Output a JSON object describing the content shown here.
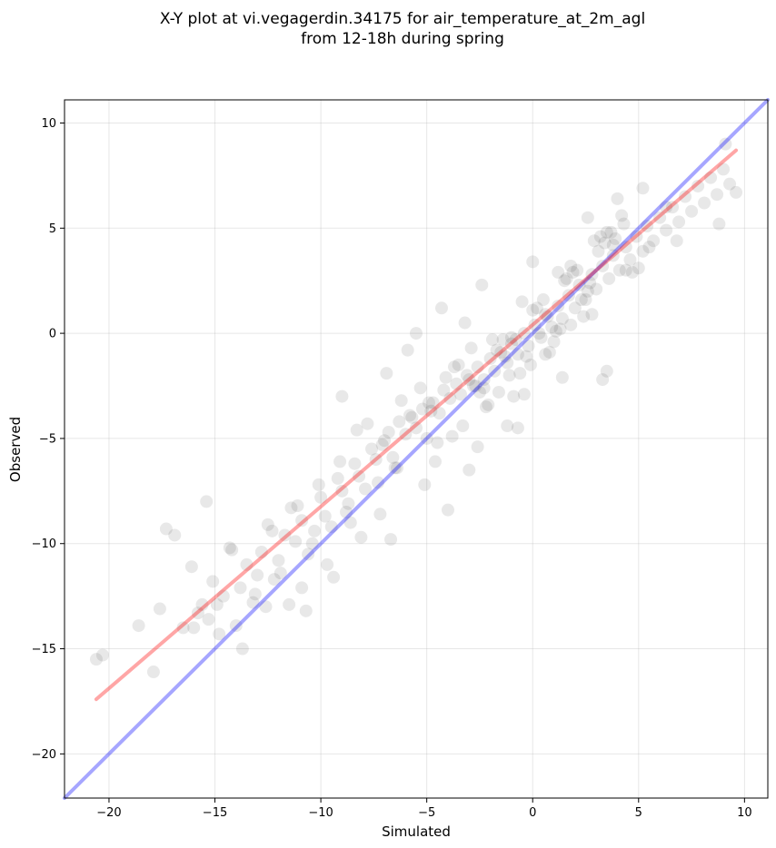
{
  "chart_data": {
    "type": "scatter",
    "title": "X-Y plot at vi.vegagerdin.34175 for air_temperature_at_2m_agl",
    "subtitle": "from 12-18h during spring",
    "xlabel": "Simulated",
    "ylabel": "Observed",
    "xlim": [
      -22.1,
      11.1
    ],
    "ylim": [
      -22.1,
      11.1
    ],
    "xticks": [
      -20,
      -15,
      -10,
      -5,
      0,
      5,
      10
    ],
    "yticks": [
      -20,
      -15,
      -10,
      -5,
      0,
      5,
      10
    ],
    "xtick_labels": [
      "−20",
      "−15",
      "−10",
      "−5",
      "0",
      "5",
      "10"
    ],
    "ytick_labels": [
      "−20",
      "−15",
      "−10",
      "−5",
      "0",
      "5",
      "10"
    ],
    "grid": true,
    "point_color": "#000000",
    "point_alpha": 0.09,
    "points_x": [
      -20.6,
      -20.3,
      -18.6,
      -17.9,
      -17.6,
      -17.3,
      -16.9,
      -16.5,
      -16.1,
      -15.8,
      -15.6,
      -15.3,
      -15.1,
      -14.8,
      -14.6,
      -14.3,
      -14.0,
      -13.8,
      -13.5,
      -13.2,
      -13.0,
      -12.8,
      -12.5,
      -12.2,
      -12.0,
      -11.7,
      -11.4,
      -11.2,
      -10.9,
      -10.6,
      -10.3,
      -10.0,
      -9.8,
      -9.5,
      -9.2,
      -9.0,
      -8.7,
      -8.4,
      -8.2,
      -7.9,
      -7.6,
      -7.4,
      -7.1,
      -6.8,
      -6.6,
      -6.3,
      -6.0,
      -5.8,
      -5.5,
      -5.2,
      -5.0,
      -4.7,
      -4.4,
      -4.2,
      -3.9,
      -3.6,
      -3.4,
      -3.1,
      -2.8,
      -2.6,
      -2.3,
      -2.0,
      -1.8,
      -1.5,
      -1.2,
      -1.0,
      -0.7,
      -0.4,
      -0.2,
      0.1,
      0.4,
      0.6,
      0.9,
      1.2,
      1.4,
      1.7,
      2.0,
      2.2,
      2.5,
      2.8,
      3.0,
      3.3,
      3.6,
      3.8,
      4.1,
      4.4,
      4.6,
      4.9,
      5.2,
      5.4,
      5.7,
      6.0,
      6.3,
      6.6,
      6.9,
      7.2,
      7.5,
      7.8,
      8.1,
      8.4,
      8.7,
      9.0,
      9.3,
      9.6,
      -15.4,
      -14.2,
      -13.1,
      -12.6,
      -11.9,
      -10.9,
      -10.4,
      -9.7,
      -8.8,
      -8.1,
      -7.3,
      -6.5,
      -5.7,
      -4.9,
      -4.1,
      -3.3,
      -2.5,
      -1.7,
      -0.9,
      -0.1,
      0.7,
      1.5,
      2.3,
      3.1,
      3.9,
      4.7,
      5.5,
      6.3,
      -12.3,
      -11.1,
      -10.1,
      -9.1,
      -8.3,
      -7.0,
      -6.2,
      -5.3,
      -4.5,
      -3.7,
      -2.9,
      -2.1,
      -1.3,
      -0.5,
      0.3,
      1.1,
      1.9,
      2.7,
      3.5,
      4.3,
      -9.0,
      -7.8,
      -6.9,
      -5.9,
      -4.8,
      -3.8,
      -3.0,
      -2.2,
      -1.4,
      -0.6,
      0.2,
      1.0,
      1.8,
      2.6,
      3.4,
      4.2,
      5.0,
      -3.5,
      -2.7,
      -1.9,
      -1.1,
      -0.3,
      0.5,
      1.3,
      2.1,
      2.9,
      3.7,
      -1.6,
      -0.8,
      0.0,
      0.8,
      1.6,
      2.4,
      3.2,
      4.0,
      -5.5,
      -4.3,
      -3.2,
      -2.4,
      -1.0,
      0.0,
      1.2,
      2.6,
      3.8,
      5.2,
      -13.7,
      -11.5,
      -9.4,
      -8.6,
      -6.4,
      -4.6,
      -2.3,
      -0.4,
      1.8,
      3.3,
      6.8,
      8.8,
      9.1,
      -7.2,
      -5.1,
      -3.0,
      -1.2,
      0.6,
      2.8,
      4.4,
      -16.0,
      -14.9,
      -10.7,
      -6.7,
      -4.0,
      -2.6,
      -0.7,
      1.4,
      3.5
    ],
    "points_y": [
      -15.5,
      -15.3,
      -13.9,
      -16.1,
      -13.1,
      -9.3,
      -9.6,
      -14.0,
      -11.1,
      -13.3,
      -12.9,
      -13.6,
      -11.8,
      -14.3,
      -12.5,
      -10.2,
      -13.9,
      -12.1,
      -11.0,
      -12.8,
      -11.5,
      -10.4,
      -9.1,
      -11.7,
      -10.8,
      -9.6,
      -8.3,
      -9.9,
      -8.9,
      -10.5,
      -9.4,
      -7.8,
      -8.7,
      -9.2,
      -6.9,
      -7.5,
      -8.1,
      -6.2,
      -6.8,
      -7.4,
      -5.5,
      -6.0,
      -5.3,
      -4.7,
      -5.9,
      -4.2,
      -4.8,
      -3.9,
      -4.5,
      -3.6,
      -5.0,
      -3.3,
      -3.8,
      -2.7,
      -3.1,
      -2.4,
      -2.9,
      -2.0,
      -2.5,
      -1.6,
      -2.2,
      -1.2,
      -1.8,
      -0.9,
      -1.4,
      -0.5,
      -1.0,
      0.0,
      -0.6,
      0.4,
      -0.2,
      0.9,
      0.3,
      1.3,
      0.7,
      1.8,
      1.2,
      2.3,
      1.6,
      2.8,
      2.1,
      3.2,
      2.6,
      3.7,
      3.0,
      4.1,
      3.5,
      4.6,
      3.9,
      5.1,
      4.4,
      5.5,
      4.9,
      6.0,
      5.3,
      6.5,
      5.8,
      7.0,
      6.2,
      7.4,
      6.6,
      7.8,
      7.1,
      6.7,
      -8.0,
      -10.3,
      -12.4,
      -13.0,
      -11.4,
      -12.1,
      -10.0,
      -11.0,
      -8.5,
      -9.7,
      -7.1,
      -6.4,
      -4.0,
      -3.3,
      -2.1,
      -4.4,
      -2.8,
      -0.8,
      -3.0,
      -1.5,
      0.8,
      2.5,
      1.6,
      3.9,
      4.5,
      2.9,
      4.1,
      6.0,
      -9.4,
      -8.2,
      -7.2,
      -6.1,
      -4.6,
      -5.1,
      -3.2,
      -2.6,
      -5.2,
      -1.6,
      -0.7,
      -3.4,
      -1.1,
      1.5,
      0.0,
      0.1,
      2.9,
      2.4,
      4.8,
      5.2,
      -3.0,
      -4.3,
      -1.9,
      -0.8,
      -3.7,
      -4.9,
      -2.2,
      -3.5,
      -0.3,
      -1.9,
      1.2,
      -0.4,
      3.2,
      2.0,
      4.3,
      5.6,
      3.1,
      -1.5,
      -2.5,
      -0.3,
      -2.0,
      -1.1,
      1.6,
      0.2,
      3.0,
      4.4,
      4.8,
      -2.8,
      -0.3,
      1.1,
      -0.9,
      2.6,
      0.8,
      4.6,
      6.4,
      0.0,
      1.2,
      0.5,
      2.3,
      -0.2,
      3.4,
      2.9,
      5.5,
      4.2,
      6.9,
      -15.0,
      -12.9,
      -11.6,
      -9.0,
      -6.4,
      -6.1,
      -2.6,
      -2.9,
      0.4,
      -2.2,
      4.4,
      5.2,
      9.0,
      -8.6,
      -7.2,
      -6.5,
      -4.4,
      -1.0,
      0.9,
      3.0,
      -14.0,
      -12.9,
      -13.2,
      -9.8,
      -8.4,
      -5.4,
      -4.5,
      -2.1,
      -1.8
    ],
    "series": [
      {
        "type": "identity",
        "color": "#0000ff",
        "alpha": 0.35,
        "x": [
          -22.1,
          11.1
        ],
        "y": [
          -22.1,
          11.1
        ]
      },
      {
        "type": "regression",
        "color": "#ff0000",
        "alpha": 0.35,
        "x": [
          -20.6,
          9.6
        ],
        "y": [
          -17.4,
          8.7
        ]
      }
    ]
  }
}
